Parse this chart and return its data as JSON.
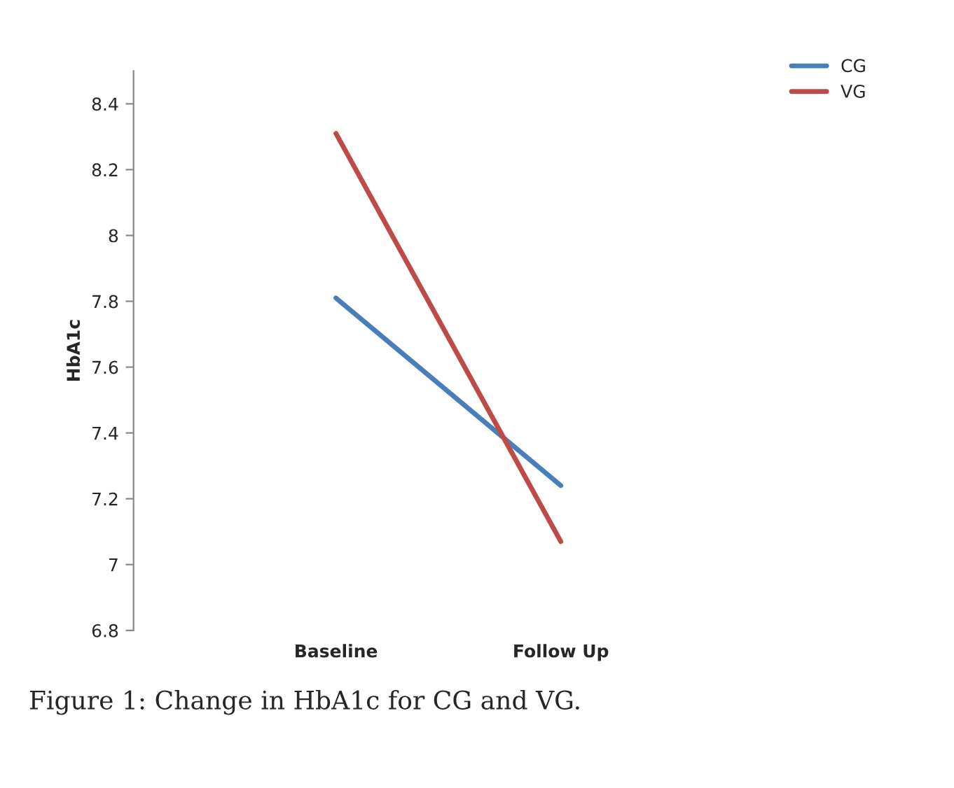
{
  "chart_data": {
    "type": "line",
    "ylabel": "HbA1c",
    "categories": [
      "Baseline",
      "Follow Up"
    ],
    "series": [
      {
        "name": "CG",
        "color": "#4a7ebb",
        "values": [
          7.81,
          7.24
        ]
      },
      {
        "name": "VG",
        "color": "#be4b48",
        "values": [
          8.31,
          7.07
        ]
      }
    ],
    "ylim": [
      6.8,
      8.5
    ],
    "yticks": [
      6.8,
      7,
      7.2,
      7.4,
      7.6,
      7.8,
      8,
      8.2,
      8.4
    ],
    "grid": false,
    "legend": "top right",
    "marker": "none",
    "line_style": "solid",
    "annotations": [
      "Figure 1: Change in HbA1c for CG and VG."
    ]
  }
}
